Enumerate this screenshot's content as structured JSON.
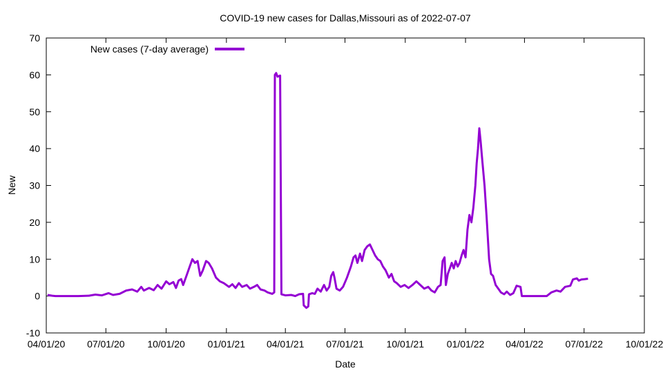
{
  "chart_data": {
    "type": "line",
    "title": "COVID-19 new cases for Dallas,Missouri as of 2022-07-07",
    "xlabel": "Date",
    "ylabel": "New",
    "xlim": [
      "2020-04-01",
      "2022-10-01"
    ],
    "ylim": [
      -10,
      70
    ],
    "x_ticks": [
      "04/01/20",
      "07/01/20",
      "10/01/20",
      "01/01/21",
      "04/01/21",
      "07/01/21",
      "10/01/21",
      "01/01/22",
      "04/01/22",
      "07/01/22",
      "10/01/22"
    ],
    "x_tick_dates": [
      "2020-04-01",
      "2020-07-01",
      "2020-10-01",
      "2021-01-01",
      "2021-04-01",
      "2021-07-01",
      "2021-10-01",
      "2022-01-01",
      "2022-04-01",
      "2022-07-01",
      "2022-10-01"
    ],
    "y_ticks": [
      -10,
      0,
      10,
      20,
      30,
      40,
      50,
      60,
      70
    ],
    "grid": false,
    "legend_position": "top-left",
    "series": [
      {
        "name": "New cases (7-day average)",
        "color": "#9400d3",
        "points": [
          [
            "2020-04-03",
            0.3
          ],
          [
            "2020-04-10",
            0.1
          ],
          [
            "2020-04-15",
            0.0
          ],
          [
            "2020-05-01",
            0.0
          ],
          [
            "2020-05-20",
            0.0
          ],
          [
            "2020-06-05",
            0.1
          ],
          [
            "2020-06-15",
            0.4
          ],
          [
            "2020-06-25",
            0.2
          ],
          [
            "2020-07-05",
            0.8
          ],
          [
            "2020-07-12",
            0.3
          ],
          [
            "2020-07-22",
            0.6
          ],
          [
            "2020-08-01",
            1.5
          ],
          [
            "2020-08-10",
            1.8
          ],
          [
            "2020-08-18",
            1.2
          ],
          [
            "2020-08-24",
            2.5
          ],
          [
            "2020-08-28",
            1.5
          ],
          [
            "2020-09-05",
            2.2
          ],
          [
            "2020-09-12",
            1.6
          ],
          [
            "2020-09-18",
            3.0
          ],
          [
            "2020-09-24",
            2.0
          ],
          [
            "2020-10-01",
            4.0
          ],
          [
            "2020-10-06",
            3.2
          ],
          [
            "2020-10-12",
            3.8
          ],
          [
            "2020-10-16",
            2.2
          ],
          [
            "2020-10-20",
            4.2
          ],
          [
            "2020-10-24",
            4.6
          ],
          [
            "2020-10-27",
            3.0
          ],
          [
            "2020-11-01",
            5.5
          ],
          [
            "2020-11-06",
            8.0
          ],
          [
            "2020-11-10",
            10.0
          ],
          [
            "2020-11-14",
            9.0
          ],
          [
            "2020-11-18",
            9.5
          ],
          [
            "2020-11-22",
            5.5
          ],
          [
            "2020-11-26",
            7.0
          ],
          [
            "2020-12-01",
            9.5
          ],
          [
            "2020-12-05",
            9.0
          ],
          [
            "2020-12-10",
            7.5
          ],
          [
            "2020-12-16",
            5.0
          ],
          [
            "2020-12-22",
            4.0
          ],
          [
            "2020-12-28",
            3.5
          ],
          [
            "2021-01-05",
            2.5
          ],
          [
            "2021-01-10",
            3.2
          ],
          [
            "2021-01-15",
            2.2
          ],
          [
            "2021-01-20",
            3.5
          ],
          [
            "2021-01-25",
            2.5
          ],
          [
            "2021-02-01",
            3.0
          ],
          [
            "2021-02-06",
            2.0
          ],
          [
            "2021-02-12",
            2.5
          ],
          [
            "2021-02-17",
            3.0
          ],
          [
            "2021-02-22",
            1.8
          ],
          [
            "2021-02-28",
            1.5
          ],
          [
            "2021-03-05",
            1.0
          ],
          [
            "2021-03-12",
            0.6
          ],
          [
            "2021-03-15",
            1.0
          ],
          [
            "2021-03-16",
            60.0
          ],
          [
            "2021-03-18",
            60.5
          ],
          [
            "2021-03-20",
            59.5
          ],
          [
            "2021-03-24",
            59.8
          ],
          [
            "2021-03-26",
            0.5
          ],
          [
            "2021-04-01",
            0.2
          ],
          [
            "2021-04-10",
            0.3
          ],
          [
            "2021-04-16",
            0.0
          ],
          [
            "2021-04-22",
            0.5
          ],
          [
            "2021-04-28",
            0.6
          ],
          [
            "2021-04-29",
            -2.5
          ],
          [
            "2021-05-03",
            -3.2
          ],
          [
            "2021-05-06",
            -2.8
          ],
          [
            "2021-05-07",
            0.5
          ],
          [
            "2021-05-12",
            0.8
          ],
          [
            "2021-05-16",
            0.6
          ],
          [
            "2021-05-20",
            2.0
          ],
          [
            "2021-05-25",
            1.2
          ],
          [
            "2021-05-30",
            3.0
          ],
          [
            "2021-06-03",
            1.5
          ],
          [
            "2021-06-07",
            2.5
          ],
          [
            "2021-06-10",
            5.5
          ],
          [
            "2021-06-13",
            6.5
          ],
          [
            "2021-06-15",
            5.0
          ],
          [
            "2021-06-18",
            2.0
          ],
          [
            "2021-06-23",
            1.5
          ],
          [
            "2021-06-28",
            2.5
          ],
          [
            "2021-07-04",
            5.0
          ],
          [
            "2021-07-10",
            8.0
          ],
          [
            "2021-07-14",
            10.5
          ],
          [
            "2021-07-17",
            11.0
          ],
          [
            "2021-07-20",
            9.0
          ],
          [
            "2021-07-24",
            11.5
          ],
          [
            "2021-07-27",
            9.5
          ],
          [
            "2021-07-31",
            12.5
          ],
          [
            "2021-08-04",
            13.5
          ],
          [
            "2021-08-08",
            14.0
          ],
          [
            "2021-08-12",
            12.5
          ],
          [
            "2021-08-16",
            11.0
          ],
          [
            "2021-08-20",
            10.0
          ],
          [
            "2021-08-24",
            9.5
          ],
          [
            "2021-08-28",
            8.0
          ],
          [
            "2021-09-01",
            7.0
          ],
          [
            "2021-09-06",
            5.0
          ],
          [
            "2021-09-10",
            6.0
          ],
          [
            "2021-09-14",
            4.0
          ],
          [
            "2021-09-18",
            3.5
          ],
          [
            "2021-09-24",
            2.5
          ],
          [
            "2021-09-30",
            3.0
          ],
          [
            "2021-10-06",
            2.2
          ],
          [
            "2021-10-12",
            3.0
          ],
          [
            "2021-10-18",
            4.0
          ],
          [
            "2021-10-24",
            3.0
          ],
          [
            "2021-10-30",
            2.0
          ],
          [
            "2021-11-05",
            2.5
          ],
          [
            "2021-11-10",
            1.5
          ],
          [
            "2021-11-15",
            1.0
          ],
          [
            "2021-11-20",
            2.5
          ],
          [
            "2021-11-24",
            3.0
          ],
          [
            "2021-11-27",
            9.5
          ],
          [
            "2021-11-30",
            10.5
          ],
          [
            "2021-12-02",
            3.0
          ],
          [
            "2021-12-05",
            6.0
          ],
          [
            "2021-12-08",
            7.5
          ],
          [
            "2021-12-11",
            9.0
          ],
          [
            "2021-12-14",
            7.5
          ],
          [
            "2021-12-17",
            9.5
          ],
          [
            "2021-12-20",
            8.0
          ],
          [
            "2021-12-23",
            9.0
          ],
          [
            "2021-12-26",
            11.0
          ],
          [
            "2021-12-29",
            12.5
          ],
          [
            "2022-01-01",
            10.5
          ],
          [
            "2022-01-04",
            18.0
          ],
          [
            "2022-01-07",
            22.0
          ],
          [
            "2022-01-10",
            20.0
          ],
          [
            "2022-01-13",
            24.0
          ],
          [
            "2022-01-16",
            30.0
          ],
          [
            "2022-01-18",
            36.0
          ],
          [
            "2022-01-20",
            40.0
          ],
          [
            "2022-01-22",
            45.5
          ],
          [
            "2022-01-24",
            42.0
          ],
          [
            "2022-01-27",
            36.0
          ],
          [
            "2022-01-30",
            30.0
          ],
          [
            "2022-02-02",
            22.0
          ],
          [
            "2022-02-04",
            16.0
          ],
          [
            "2022-02-06",
            10.0
          ],
          [
            "2022-02-09",
            6.0
          ],
          [
            "2022-02-12",
            5.5
          ],
          [
            "2022-02-16",
            3.0
          ],
          [
            "2022-02-20",
            2.0
          ],
          [
            "2022-02-24",
            1.0
          ],
          [
            "2022-03-01",
            0.5
          ],
          [
            "2022-03-05",
            1.2
          ],
          [
            "2022-03-10",
            0.3
          ],
          [
            "2022-03-15",
            0.8
          ],
          [
            "2022-03-20",
            2.8
          ],
          [
            "2022-03-26",
            2.5
          ],
          [
            "2022-03-28",
            0.0
          ],
          [
            "2022-04-15",
            0.0
          ],
          [
            "2022-05-05",
            0.0
          ],
          [
            "2022-05-12",
            1.0
          ],
          [
            "2022-05-20",
            1.5
          ],
          [
            "2022-05-26",
            1.2
          ],
          [
            "2022-06-02",
            2.5
          ],
          [
            "2022-06-10",
            2.8
          ],
          [
            "2022-06-14",
            4.5
          ],
          [
            "2022-06-20",
            4.8
          ],
          [
            "2022-06-23",
            4.2
          ],
          [
            "2022-06-27",
            4.5
          ],
          [
            "2022-07-02",
            4.6
          ],
          [
            "2022-07-07",
            4.7
          ]
        ]
      }
    ]
  }
}
